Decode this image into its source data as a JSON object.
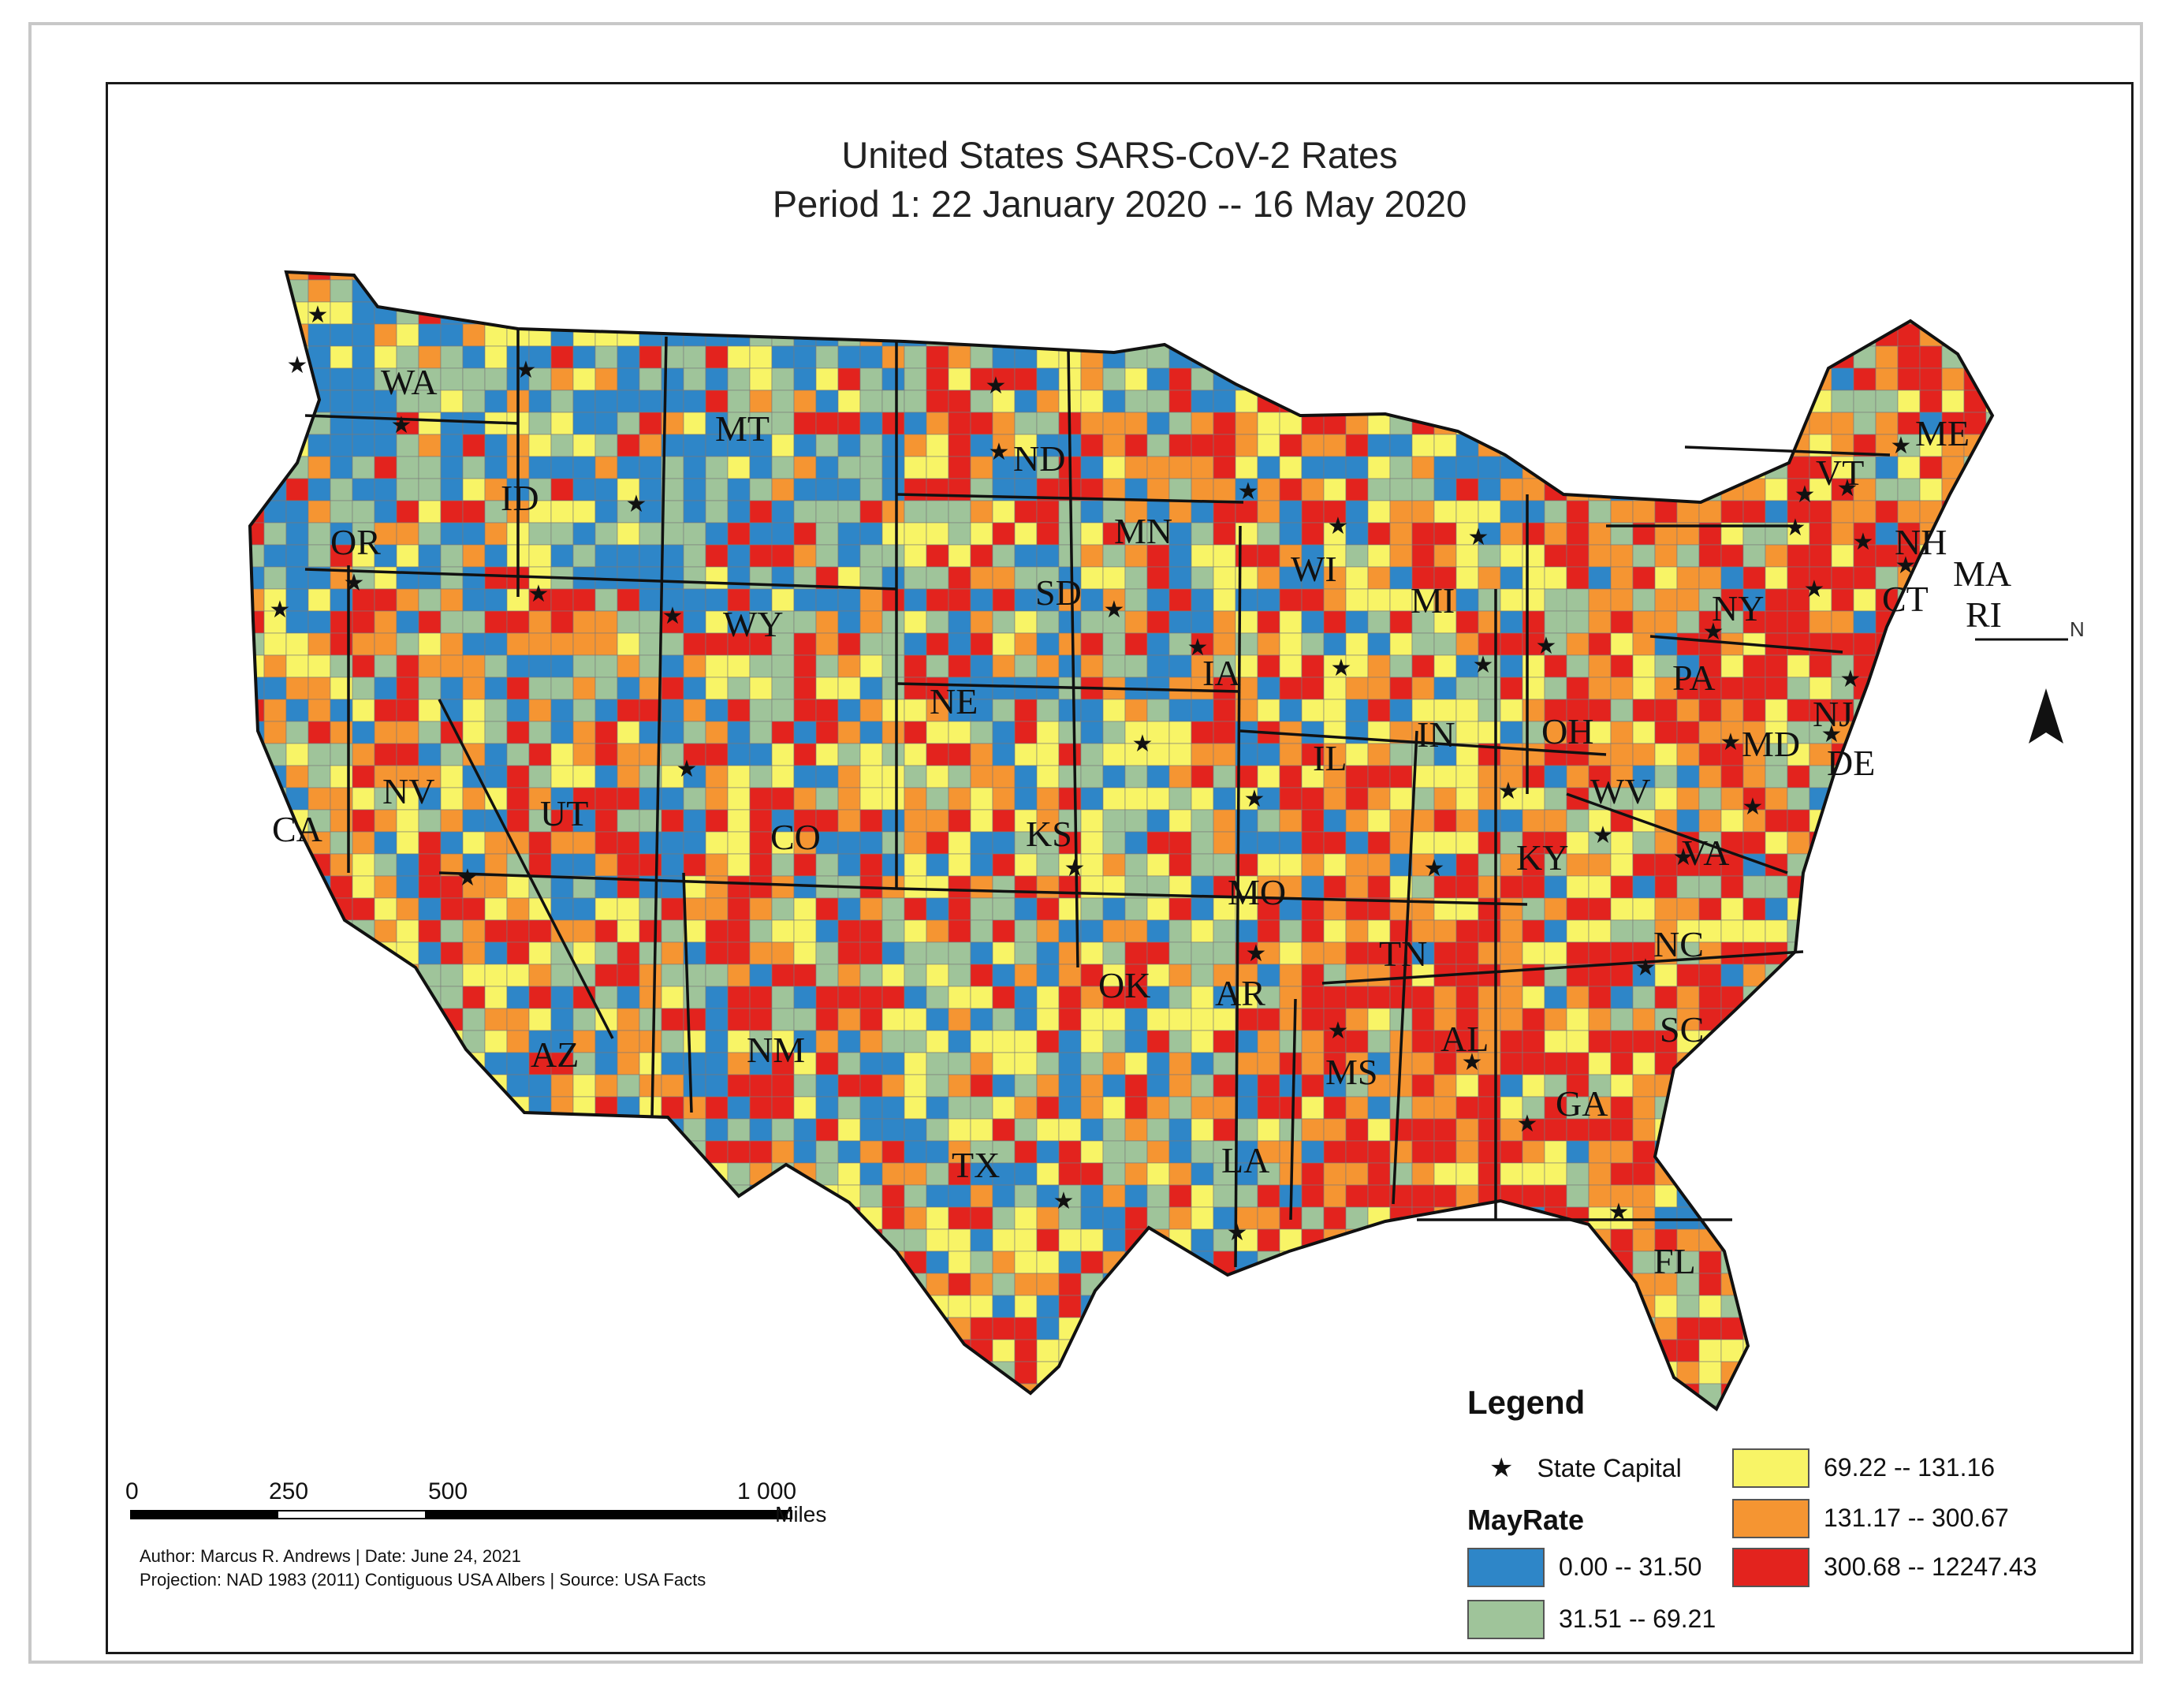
{
  "title": {
    "line1": "United States SARS-CoV-2 Rates",
    "line2": "Period 1: 22 January 2020  --    16 May 2020"
  },
  "states": [
    "WA",
    "OR",
    "ID",
    "MT",
    "WY",
    "NV",
    "CA",
    "UT",
    "CO",
    "AZ",
    "NM",
    "ND",
    "SD",
    "NE",
    "KS",
    "OK",
    "TX",
    "MN",
    "IA",
    "MO",
    "AR",
    "LA",
    "WI",
    "IL",
    "MI",
    "IN",
    "OH",
    "KY",
    "TN",
    "MS",
    "AL",
    "GA",
    "FL",
    "SC",
    "NC",
    "VA",
    "WV",
    "PA",
    "NY",
    "VT",
    "NH",
    "ME",
    "MA",
    "RI",
    "CT",
    "NJ",
    "DE",
    "MD"
  ],
  "north_arrow": {
    "letter": "N",
    "icon": "north-arrow-icon"
  },
  "legend": {
    "title": "Legend",
    "capital_label": "State Capital",
    "field": "MayRate",
    "classes": [
      {
        "label": "0.00 -- 31.50",
        "color": "#2e86c8"
      },
      {
        "label": "31.51 -- 69.21",
        "color": "#9fc49a"
      },
      {
        "label": "69.22 -- 131.16",
        "color": "#f8f466"
      },
      {
        "label": "131.17 -- 300.67",
        "color": "#f59532"
      },
      {
        "label": "300.68 -- 12247.43",
        "color": "#e3231e"
      }
    ]
  },
  "scale_bar": {
    "ticks": [
      "0",
      "250",
      "500",
      "1 000"
    ],
    "units": "Miles"
  },
  "credits": {
    "line1": "Author: Marcus R. Andrews | Date: June 24, 2021",
    "line2": "Projection: NAD 1983 (2011) Contiguous USA Albers  | Source: USA Facts"
  }
}
